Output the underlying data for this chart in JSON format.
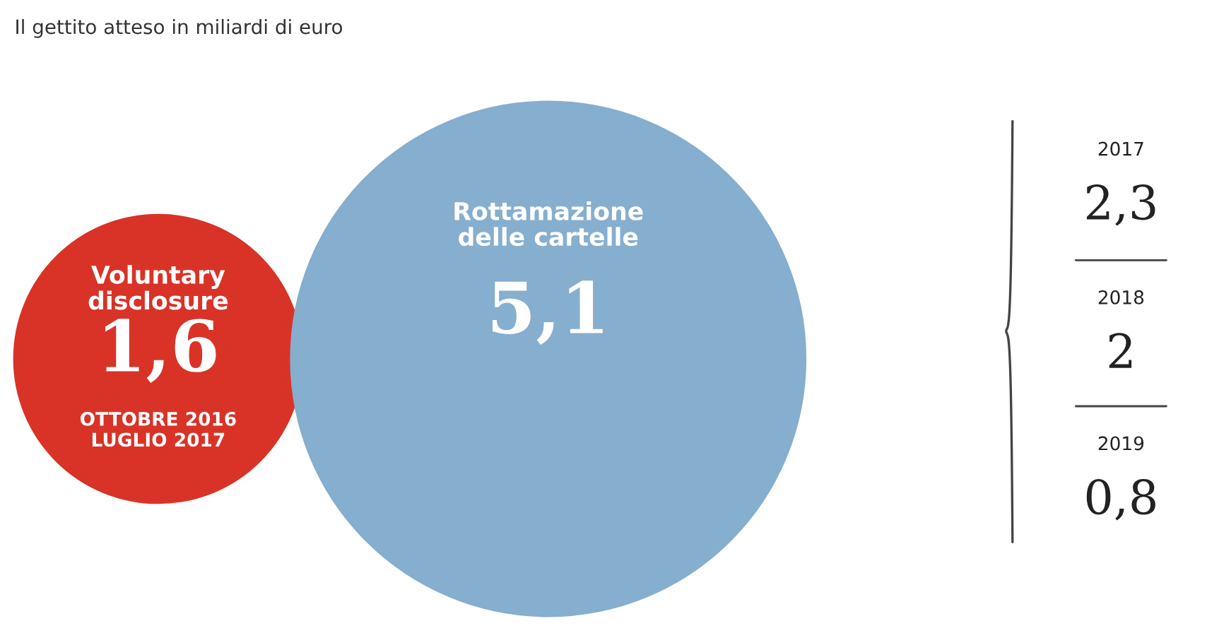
{
  "chart_data": [
    {
      "type": "other",
      "title": "Il gettito atteso in miliardi di euro",
      "categories": [
        "Voluntary\ndisclosure",
        "Rottamazione\ndelle cartelle"
      ],
      "values": [
        1.6,
        5.1
      ],
      "value_labels": [
        "1,6",
        "5,1"
      ],
      "colors": [
        "#d93327",
        "#86aece"
      ],
      "annotations": [
        "OTTOBRE 2016\nLUGLIO 2017"
      ]
    },
    {
      "type": "other",
      "categories": [
        "2017",
        "2018",
        "2019"
      ],
      "values": [
        2.3,
        2,
        0.8
      ],
      "value_labels": [
        "2,3",
        "2",
        "0,8"
      ]
    }
  ]
}
